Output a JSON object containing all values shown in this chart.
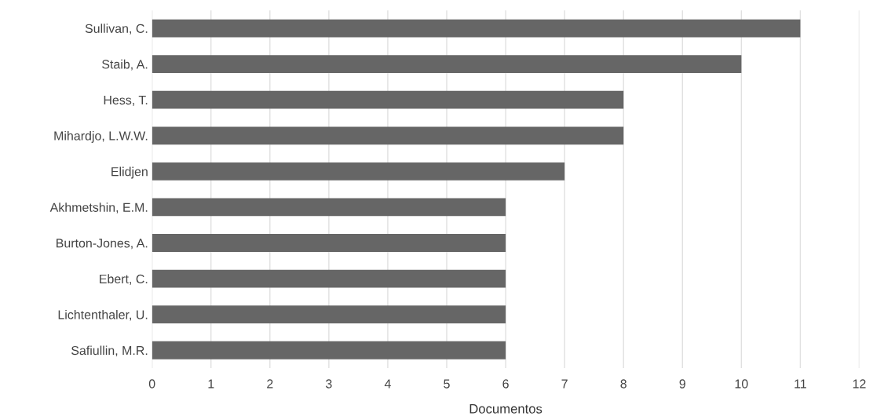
{
  "chart_data": {
    "type": "bar",
    "orientation": "horizontal",
    "xlabel": "Documentos",
    "categories": [
      "Sullivan, C.",
      "Staib, A.",
      "Hess, T.",
      "Mihardjo, L.W.W.",
      "Elidjen",
      "Akhmetshin, E.M.",
      "Burton-Jones, A.",
      "Ebert, C.",
      "Lichtenthaler, U.",
      "Safiullin, M.R."
    ],
    "values": [
      11,
      10,
      8,
      8,
      7,
      6,
      6,
      6,
      6,
      6
    ],
    "color": "#666666",
    "xlim": [
      0,
      12
    ],
    "xticks": [
      0,
      1,
      2,
      3,
      4,
      5,
      6,
      7,
      8,
      9,
      10,
      11,
      12
    ],
    "grid": "x"
  }
}
